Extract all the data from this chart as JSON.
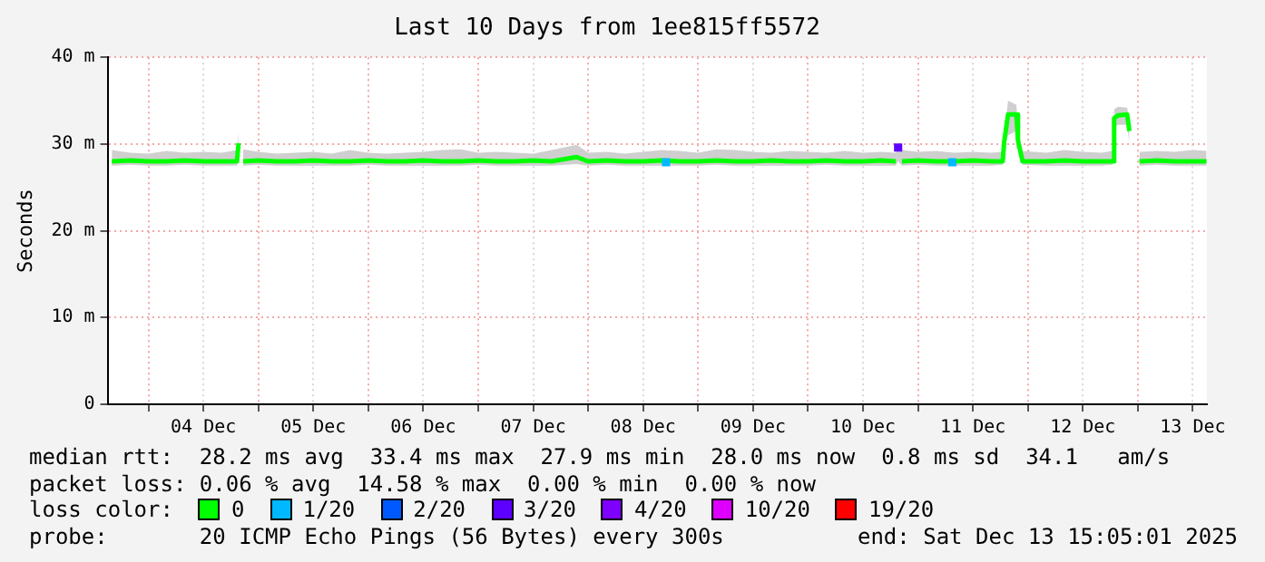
{
  "chart_data": {
    "type": "line",
    "title": "Last 10 Days from 1ee815ff5572",
    "ylabel": "Seconds",
    "legend_title": "loss color:",
    "legend": "bottom",
    "grid": true,
    "xlim": [
      "2025-12-03T15:05",
      "2025-12-13T15:05"
    ],
    "xticks": [
      {
        "value": "2025-12-04T00:00",
        "label": null
      },
      {
        "value": "2025-12-04T12:00",
        "label": "04 Dec"
      },
      {
        "value": "2025-12-05T00:00",
        "label": null
      },
      {
        "value": "2025-12-05T12:00",
        "label": "05 Dec"
      },
      {
        "value": "2025-12-06T00:00",
        "label": null
      },
      {
        "value": "2025-12-06T12:00",
        "label": "06 Dec"
      },
      {
        "value": "2025-12-07T00:00",
        "label": null
      },
      {
        "value": "2025-12-07T12:00",
        "label": "07 Dec"
      },
      {
        "value": "2025-12-08T00:00",
        "label": null
      },
      {
        "value": "2025-12-08T12:00",
        "label": "08 Dec"
      },
      {
        "value": "2025-12-09T00:00",
        "label": null
      },
      {
        "value": "2025-12-09T12:00",
        "label": "09 Dec"
      },
      {
        "value": "2025-12-10T00:00",
        "label": null
      },
      {
        "value": "2025-12-10T12:00",
        "label": "10 Dec"
      },
      {
        "value": "2025-12-11T00:00",
        "label": null
      },
      {
        "value": "2025-12-11T12:00",
        "label": "11 Dec"
      },
      {
        "value": "2025-12-12T00:00",
        "label": null
      },
      {
        "value": "2025-12-12T12:00",
        "label": "12 Dec"
      },
      {
        "value": "2025-12-13T00:00",
        "label": null
      },
      {
        "value": "2025-12-13T12:00",
        "label": "13 Dec"
      }
    ],
    "ylim": [
      0,
      40
    ],
    "yticks": [
      0,
      {
        "value": 10,
        "label": "10 m"
      },
      {
        "value": 20,
        "label": "20 m"
      },
      {
        "value": 30,
        "label": "30 m"
      },
      {
        "value": 40,
        "label": "40 m"
      }
    ],
    "series": [
      {
        "name": "0",
        "color": "#00ff00",
        "marker": "none",
        "x": [
          "2025-12-03T16:00",
          "2025-12-03T20:00",
          "2025-12-04T00:00",
          "2025-12-04T04:00",
          "2025-12-04T08:00",
          "2025-12-04T12:00",
          "2025-12-04T16:00",
          "2025-12-04T19:20",
          "2025-12-04T19:40",
          "2025-12-04T20:10",
          "2025-12-04T20:40",
          "2025-12-05T00:00",
          "2025-12-05T04:00",
          "2025-12-05T08:00",
          "2025-12-05T12:00",
          "2025-12-05T16:00",
          "2025-12-05T20:00",
          "2025-12-06T00:00",
          "2025-12-06T04:00",
          "2025-12-06T08:00",
          "2025-12-06T12:00",
          "2025-12-06T16:00",
          "2025-12-06T20:00",
          "2025-12-07T00:00",
          "2025-12-07T04:00",
          "2025-12-07T08:00",
          "2025-12-07T12:00",
          "2025-12-07T16:00",
          "2025-12-07T21:30",
          "2025-12-08T00:00",
          "2025-12-08T04:00",
          "2025-12-08T08:00",
          "2025-12-08T12:00",
          "2025-12-08T16:00",
          "2025-12-08T20:00",
          "2025-12-09T00:00",
          "2025-12-09T04:00",
          "2025-12-09T08:00",
          "2025-12-09T12:00",
          "2025-12-09T16:00",
          "2025-12-09T20:00",
          "2025-12-10T00:00",
          "2025-12-10T04:00",
          "2025-12-10T08:00",
          "2025-12-10T12:00",
          "2025-12-10T16:00",
          "2025-12-10T19:10",
          "2025-12-10T19:40",
          "2025-12-10T20:30",
          "2025-12-11T00:00",
          "2025-12-11T04:00",
          "2025-12-11T08:00",
          "2025-12-11T12:00",
          "2025-12-11T16:00",
          "2025-12-11T18:30",
          "2025-12-11T18:50",
          "2025-12-11T19:40",
          "2025-12-11T21:30",
          "2025-12-11T21:50",
          "2025-12-11T22:50",
          "2025-12-12T04:00",
          "2025-12-12T08:00",
          "2025-12-12T12:00",
          "2025-12-12T16:00",
          "2025-12-12T18:30",
          "2025-12-12T18:50",
          "2025-12-12T19:40",
          "2025-12-12T21:40",
          "2025-12-12T22:10",
          "2025-12-12T23:10",
          "2025-12-13T00:20",
          "2025-12-13T04:00",
          "2025-12-13T08:00",
          "2025-12-13T12:00",
          "2025-12-13T15:00"
        ],
        "values": [
          28.0,
          28.1,
          28.0,
          28.0,
          28.1,
          28.0,
          28.0,
          28.0,
          30.1,
          null,
          28.0,
          28.1,
          28.0,
          28.0,
          28.1,
          28.0,
          28.0,
          28.1,
          28.0,
          28.0,
          28.1,
          28.0,
          28.0,
          28.1,
          28.0,
          28.0,
          28.1,
          28.0,
          28.5,
          28.0,
          28.1,
          28.0,
          28.0,
          28.1,
          28.0,
          28.0,
          28.1,
          28.0,
          28.0,
          28.1,
          28.0,
          28.0,
          28.1,
          28.0,
          28.0,
          28.1,
          28.0,
          null,
          28.0,
          28.1,
          28.0,
          28.0,
          28.1,
          28.0,
          28.0,
          30.3,
          33.4,
          33.4,
          30.4,
          28.0,
          28.0,
          28.1,
          28.0,
          28.0,
          28.0,
          33.0,
          33.3,
          33.4,
          31.5,
          null,
          28.0,
          28.1,
          28.0,
          28.0,
          28.0
        ],
        "lower": [
          27.5,
          27.6,
          27.5,
          27.5,
          27.6,
          27.5,
          27.5,
          27.5,
          28.2,
          null,
          27.5,
          27.6,
          27.5,
          27.5,
          27.5,
          27.5,
          27.5,
          27.6,
          27.5,
          27.5,
          27.5,
          27.5,
          27.5,
          27.6,
          27.5,
          27.5,
          27.5,
          27.5,
          27.7,
          27.5,
          27.6,
          27.5,
          27.5,
          27.5,
          27.5,
          27.5,
          27.6,
          27.5,
          27.5,
          27.5,
          27.5,
          27.5,
          27.6,
          27.5,
          27.5,
          27.5,
          27.5,
          28.0,
          27.5,
          27.6,
          27.5,
          27.5,
          27.5,
          27.5,
          27.6,
          29.6,
          31.0,
          31.5,
          29.5,
          27.6,
          27.5,
          27.5,
          27.5,
          27.5,
          27.6,
          32.0,
          32.2,
          32.2,
          30.0,
          null,
          27.5,
          27.6,
          27.5,
          27.5,
          27.5
        ],
        "upper": [
          29.3,
          29.0,
          28.9,
          29.2,
          29.0,
          29.1,
          29.0,
          29.3,
          31.4,
          null,
          29.4,
          29.1,
          28.9,
          29.0,
          29.1,
          28.9,
          29.3,
          29.0,
          28.9,
          29.0,
          29.1,
          29.3,
          29.4,
          29.0,
          29.1,
          29.0,
          28.9,
          29.3,
          29.9,
          29.0,
          29.1,
          28.9,
          29.1,
          29.3,
          29.2,
          29.0,
          29.4,
          29.3,
          29.1,
          29.0,
          29.2,
          29.1,
          29.0,
          29.2,
          29.0,
          29.1,
          29.0,
          29.8,
          29.3,
          29.1,
          29.2,
          29.0,
          29.1,
          29.0,
          29.1,
          31.0,
          35.0,
          34.5,
          31.5,
          29.2,
          29.0,
          29.3,
          29.1,
          29.0,
          29.2,
          34.0,
          34.3,
          34.2,
          32.5,
          null,
          29.1,
          29.2,
          29.1,
          29.3,
          29.2
        ]
      },
      {
        "name": "1/20",
        "type": "scatter",
        "color": "#00b8ff",
        "marker": "square",
        "x": [
          "2025-12-08T17:00",
          "2025-12-11T07:30"
        ],
        "values": [
          27.9,
          27.9
        ]
      },
      {
        "name": "2/20",
        "type": "scatter",
        "color": "#0059ff",
        "marker": "square"
      },
      {
        "name": "3/20",
        "type": "scatter",
        "color": "#5e00ff",
        "marker": "square",
        "x": [
          "2025-12-10T19:40"
        ],
        "values": [
          29.6
        ]
      },
      {
        "name": "4/20",
        "type": "scatter",
        "color": "#7e00ff",
        "marker": "square"
      },
      {
        "name": "10/20",
        "type": "scatter",
        "color": "#dd00ff",
        "marker": "square"
      },
      {
        "name": "19/20",
        "type": "scatter",
        "color": "#ff0000",
        "marker": "square"
      }
    ],
    "annotations": [
      "median rtt:  28.2 ms avg  33.4 ms max  27.9 ms min  28.0 ms now  0.8 ms sd  34.1   am/s",
      "packet loss: 0.06 % avg  14.58 % max  0.00 % min  0.00 % now",
      "probe:       20 ICMP Echo Pings (56 Bytes) every 300s",
      "end: Sat Dec 13 15:05:01 2025"
    ]
  }
}
